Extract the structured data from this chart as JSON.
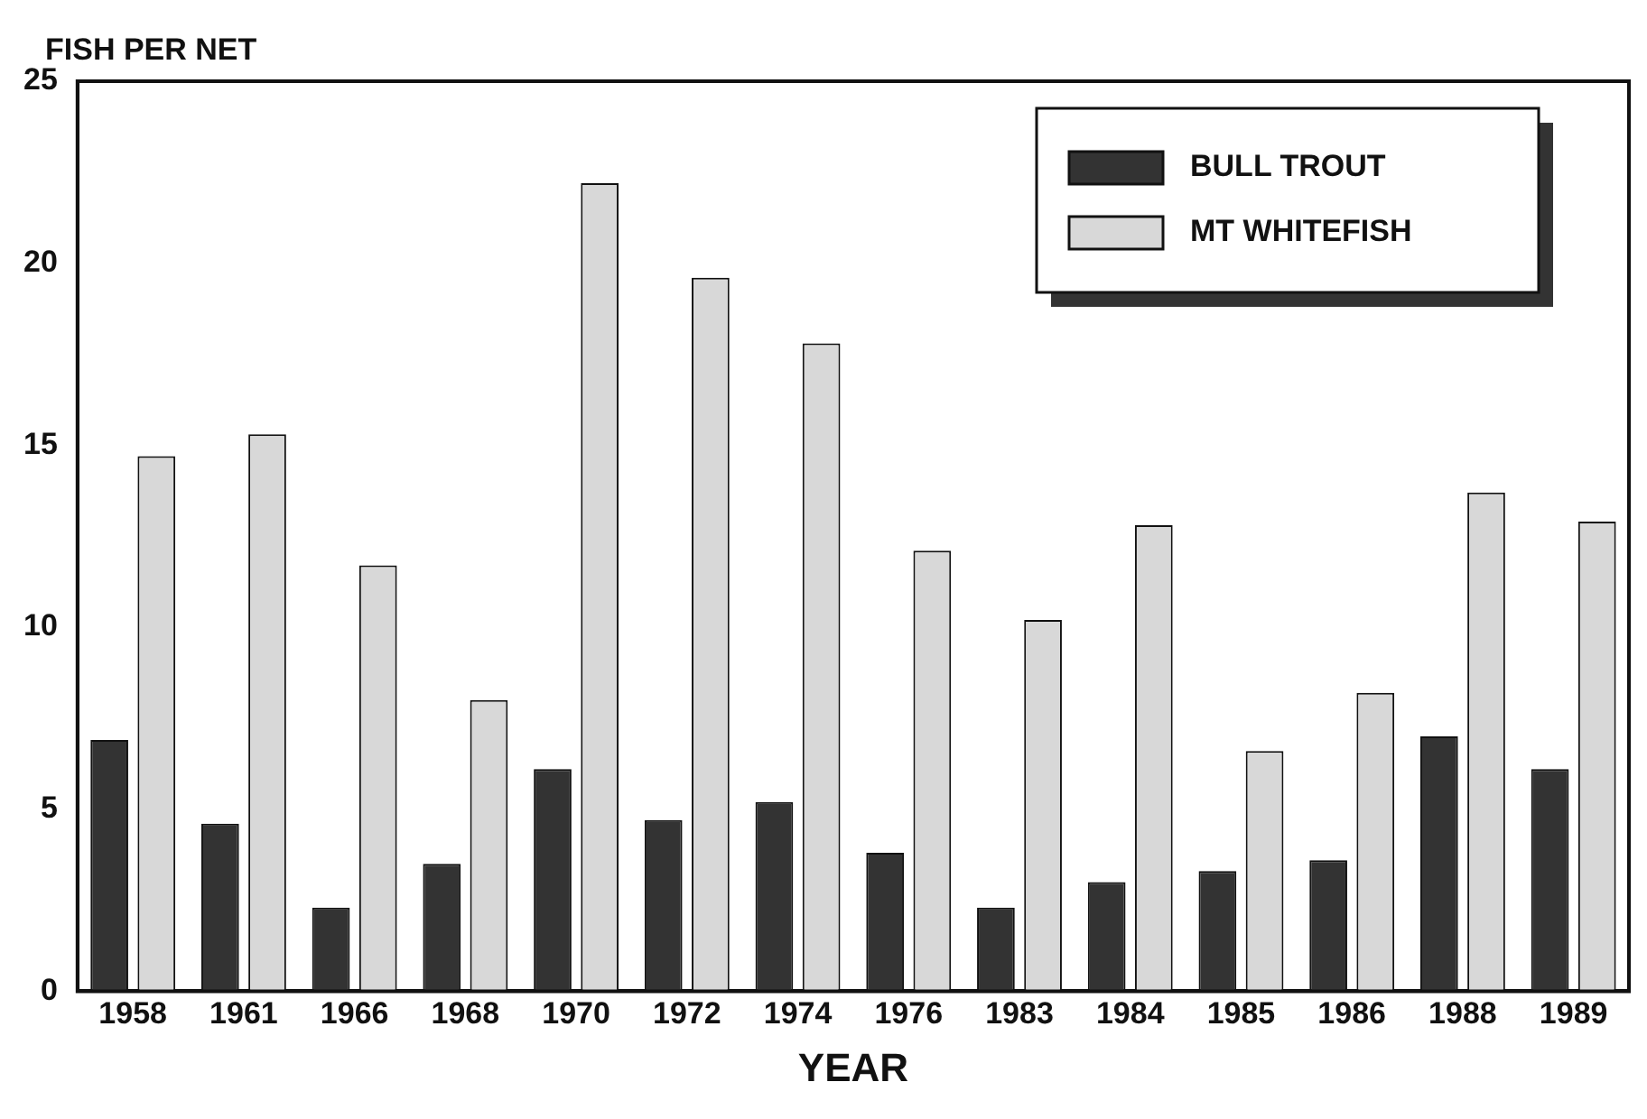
{
  "chart_data": {
    "type": "bar",
    "ylabel": "FISH PER NET",
    "xlabel": "YEAR",
    "categories": [
      "1958",
      "1961",
      "1966",
      "1968",
      "1970",
      "1972",
      "1974",
      "1976",
      "1983",
      "1984",
      "1985",
      "1986",
      "1988",
      "1989"
    ],
    "series": [
      {
        "name": "BULL TROUT",
        "color": "#333333",
        "values": [
          6.9,
          4.6,
          2.3,
          3.5,
          6.1,
          4.7,
          5.2,
          3.8,
          2.3,
          3.0,
          3.3,
          3.6,
          7.0,
          6.1
        ]
      },
      {
        "name": "MT WHITEFISH",
        "color": "#d8d8d8",
        "values": [
          14.7,
          15.3,
          11.7,
          8.0,
          22.2,
          19.6,
          17.8,
          12.1,
          10.2,
          12.8,
          6.6,
          8.2,
          13.7,
          12.9
        ]
      }
    ],
    "ylim": [
      0,
      25
    ],
    "yticks": [
      0,
      5,
      10,
      15,
      20,
      25
    ],
    "grid": false,
    "legend": "top right"
  }
}
